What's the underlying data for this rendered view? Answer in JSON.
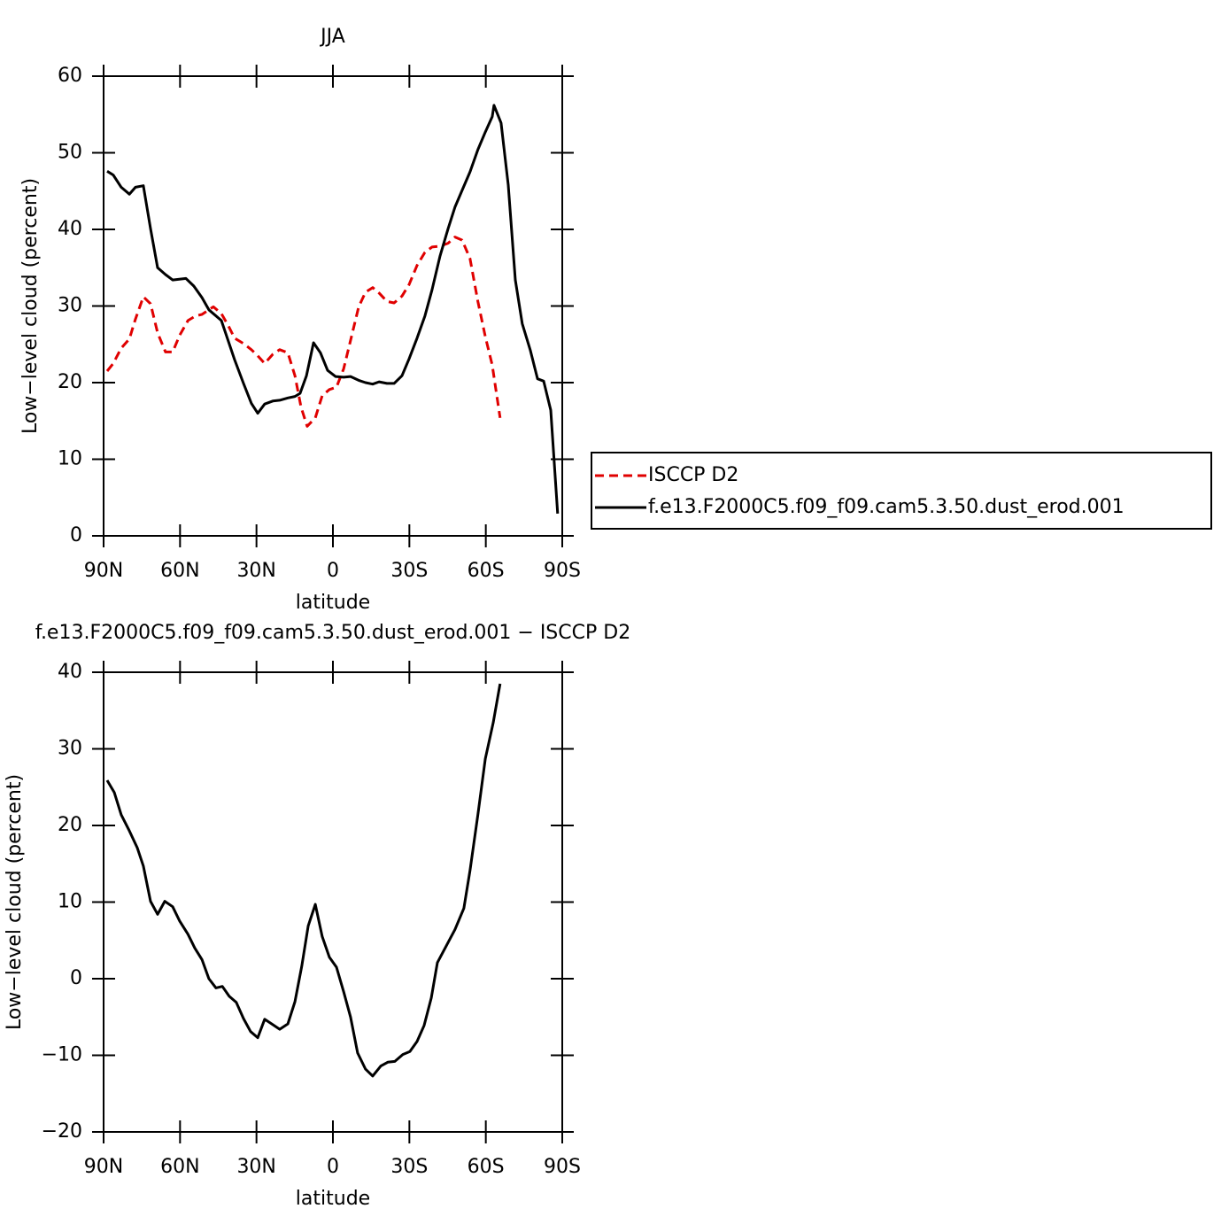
{
  "chart_data": [
    {
      "type": "line",
      "title": "JJA",
      "x_label": "latitude",
      "y_label": "Low−level cloud (percent)",
      "xlim": [
        90,
        -90
      ],
      "ylim": [
        0,
        60
      ],
      "xticks": [
        {
          "value": 90,
          "label": "90N"
        },
        {
          "value": 60,
          "label": "60N"
        },
        {
          "value": 30,
          "label": "30N"
        },
        0,
        {
          "value": -30,
          "label": "30S"
        },
        {
          "value": -60,
          "label": "60S"
        },
        {
          "value": -90,
          "label": "90S"
        }
      ],
      "yticks": [
        0,
        10,
        20,
        30,
        40,
        50,
        60
      ],
      "legend": "right",
      "series": [
        {
          "name": "ISCCP D2",
          "color": "#e00000",
          "style": "dashed",
          "x": [
            88.6,
            86.2,
            83.1,
            79.9,
            77.5,
            74.4,
            71.6,
            68.8,
            65.7,
            62.9,
            60.1,
            56.9,
            53.9,
            51.4,
            46.9,
            43.8,
            41.0,
            38.6,
            35.1,
            32.0,
            29.5,
            26.8,
            23.6,
            20.9,
            17.7,
            14.9,
            12.5,
            10.1,
            6.9,
            4.2,
            1.4,
            -1.4,
            -4.2,
            -6.9,
            -10.1,
            -12.8,
            -15.6,
            -18.1,
            -21.2,
            -24.0,
            -27.1,
            -29.9,
            -33.0,
            -36.1,
            -38.9,
            -42.0,
            -45.2,
            -47.9,
            -50.7,
            -53.8,
            -56.9,
            -59.8,
            -62.5,
            -65.6
          ],
          "values": [
            21.5,
            22.5,
            24.5,
            25.7,
            28.3,
            31.2,
            30.3,
            26.5,
            24.0,
            24.0,
            26.2,
            28.1,
            28.7,
            28.9,
            29.9,
            29.0,
            27.4,
            25.8,
            25.1,
            24.3,
            23.5,
            22.5,
            23.7,
            24.3,
            23.9,
            20.9,
            16.8,
            14.3,
            15.4,
            18.3,
            19.1,
            19.4,
            21.8,
            25.5,
            29.9,
            31.8,
            32.4,
            31.7,
            30.6,
            30.4,
            31.3,
            32.8,
            35.3,
            37.0,
            37.7,
            37.8,
            38.2,
            39.0,
            38.6,
            36.2,
            30.6,
            26.0,
            22.3,
            15.4
          ]
        },
        {
          "name": "f.e13.F2000C5.f09_f09.cam5.3.50.dust_erod.001",
          "color": "#000000",
          "style": "solid",
          "x": [
            88.6,
            86.2,
            83.1,
            79.9,
            77.5,
            74.4,
            71.6,
            68.8,
            65.7,
            62.9,
            57.7,
            54.6,
            51.4,
            48.7,
            43.8,
            38.6,
            35.1,
            32.0,
            29.5,
            26.8,
            23.6,
            20.9,
            17.7,
            14.9,
            12.9,
            10.4,
            7.6,
            4.9,
            2.1,
            -1.0,
            -4.2,
            -6.9,
            -10.1,
            -12.8,
            -15.6,
            -18.1,
            -21.2,
            -24.0,
            -27.1,
            -29.9,
            -33.0,
            -36.1,
            -38.9,
            -42.0,
            -45.2,
            -47.9,
            -50.7,
            -53.8,
            -56.9,
            -59.8,
            -62.5,
            -63.2,
            -66.0,
            -68.8,
            -71.6,
            -74.3,
            -77.5,
            -80.3,
            -82.7,
            -85.5,
            -88.2
          ],
          "values": [
            47.6,
            47.1,
            45.5,
            44.6,
            45.5,
            45.7,
            40.1,
            35.0,
            34.1,
            33.4,
            33.6,
            32.6,
            31.1,
            29.5,
            28.1,
            23.0,
            19.9,
            17.3,
            16.0,
            17.2,
            17.6,
            17.7,
            18.0,
            18.2,
            18.6,
            20.9,
            25.2,
            23.9,
            21.6,
            20.8,
            20.7,
            20.8,
            20.3,
            20.0,
            19.8,
            20.1,
            19.9,
            19.9,
            20.9,
            23.1,
            25.8,
            28.7,
            32.1,
            36.5,
            40.1,
            42.9,
            45.1,
            47.5,
            50.4,
            52.7,
            54.7,
            56.2,
            53.9,
            45.8,
            33.4,
            27.7,
            24.2,
            20.5,
            20.2,
            16.4,
            2.9
          ]
        }
      ]
    },
    {
      "type": "line",
      "title": "f.e13.F2000C5.f09_f09.cam5.3.50.dust_erod.001 − ISCCP D2",
      "x_label": "latitude",
      "y_label": "Low−level cloud (percent)",
      "xlim": [
        90,
        -90
      ],
      "ylim": [
        -20,
        40
      ],
      "xticks": [
        {
          "value": 90,
          "label": "90N"
        },
        {
          "value": 60,
          "label": "60N"
        },
        {
          "value": 30,
          "label": "30N"
        },
        0,
        {
          "value": -30,
          "label": "30S"
        },
        {
          "value": -60,
          "label": "60S"
        },
        {
          "value": -90,
          "label": "90S"
        }
      ],
      "yticks": [
        {
          "value": -20,
          "label": "−20"
        },
        {
          "value": -10,
          "label": "−10"
        },
        0,
        10,
        20,
        30,
        40
      ],
      "series": [
        {
          "color": "#000000",
          "style": "solid",
          "x": [
            88.6,
            85.8,
            83.1,
            79.9,
            76.8,
            74.4,
            71.6,
            68.8,
            66.0,
            62.9,
            60.1,
            56.9,
            54.2,
            51.4,
            48.7,
            45.9,
            43.4,
            40.7,
            37.9,
            35.1,
            32.3,
            29.5,
            26.8,
            23.6,
            20.9,
            17.7,
            14.9,
            12.2,
            9.7,
            6.9,
            4.2,
            1.4,
            -1.4,
            -4.2,
            -6.9,
            -9.7,
            -12.8,
            -15.6,
            -18.8,
            -21.5,
            -24.3,
            -27.4,
            -30.2,
            -33.0,
            -35.8,
            -38.6,
            -41.0,
            -44.5,
            -47.9,
            -51.4,
            -53.8,
            -56.9,
            -59.8,
            -62.9,
            -65.6
          ],
          "values": [
            25.9,
            24.3,
            21.4,
            19.3,
            17.1,
            14.7,
            10.1,
            8.4,
            10.1,
            9.4,
            7.5,
            5.8,
            4.0,
            2.5,
            0,
            -1.2,
            -1.0,
            -2.3,
            -3.1,
            -5.2,
            -6.9,
            -7.7,
            -5.3,
            -6.0,
            -6.6,
            -5.9,
            -3.0,
            1.7,
            6.9,
            9.7,
            5.5,
            2.8,
            1.5,
            -1.7,
            -5.0,
            -9.7,
            -11.8,
            -12.7,
            -11.4,
            -10.9,
            -10.8,
            -9.9,
            -9.5,
            -8.2,
            -6.1,
            -2.5,
            2.1,
            4.3,
            6.4,
            9.2,
            14.1,
            21.4,
            28.7,
            33.4,
            38.5
          ]
        }
      ]
    }
  ]
}
